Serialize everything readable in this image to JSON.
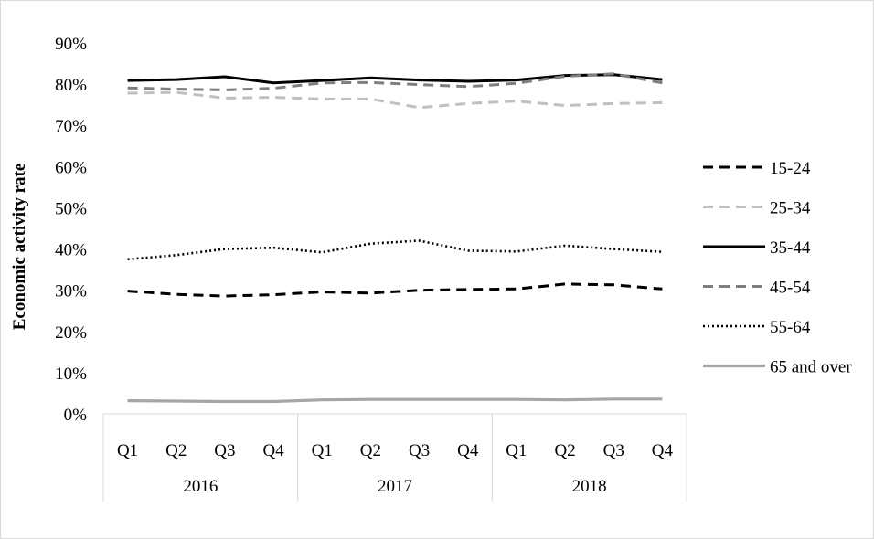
{
  "chart_data": {
    "type": "line",
    "title": "",
    "xlabel": "",
    "ylabel": "Economic activity rate",
    "ylim": [
      0,
      90
    ],
    "yticks": [
      0,
      10,
      20,
      30,
      40,
      50,
      60,
      70,
      80,
      90
    ],
    "ytick_labels": [
      "0%",
      "10%",
      "20%",
      "30%",
      "40%",
      "50%",
      "60%",
      "70%",
      "80%",
      "90%"
    ],
    "grid": false,
    "legend_position": "right",
    "categories": [
      "Q1",
      "Q2",
      "Q3",
      "Q4",
      "Q1",
      "Q2",
      "Q3",
      "Q4",
      "Q1",
      "Q2",
      "Q3",
      "Q4"
    ],
    "groups": [
      {
        "label": "2016",
        "count": 4
      },
      {
        "label": "2017",
        "count": 4
      },
      {
        "label": "2018",
        "count": 4
      }
    ],
    "series": [
      {
        "name": "15-24",
        "color": "#000000",
        "dash": "dashed",
        "values": [
          29.8,
          29.0,
          28.6,
          28.9,
          29.6,
          29.3,
          30.0,
          30.2,
          30.3,
          31.5,
          31.3,
          30.3
        ]
      },
      {
        "name": "25-34",
        "color": "#c0c0c0",
        "dash": "dashed",
        "values": [
          77.8,
          78.0,
          76.6,
          76.8,
          76.4,
          76.4,
          74.3,
          75.3,
          75.9,
          74.8,
          75.3,
          75.5
        ]
      },
      {
        "name": "35-44",
        "color": "#000000",
        "dash": "solid",
        "values": [
          80.9,
          81.1,
          81.8,
          80.3,
          80.9,
          81.5,
          81.0,
          80.7,
          81.0,
          82.1,
          82.3,
          81.1
        ]
      },
      {
        "name": "45-54",
        "color": "#7f7f7f",
        "dash": "dashed",
        "values": [
          79.1,
          78.8,
          78.6,
          79.0,
          80.3,
          80.4,
          79.9,
          79.4,
          80.2,
          81.9,
          82.5,
          80.3
        ]
      },
      {
        "name": "55-64",
        "color": "#000000",
        "dash": "dotted",
        "values": [
          37.5,
          38.5,
          40.0,
          40.3,
          39.2,
          41.3,
          42.0,
          39.6,
          39.4,
          40.8,
          40.0,
          39.3
        ]
      },
      {
        "name": "65 and over",
        "color": "#a6a6a6",
        "dash": "solid",
        "values": [
          3.2,
          3.1,
          3.0,
          3.0,
          3.4,
          3.5,
          3.5,
          3.5,
          3.5,
          3.4,
          3.6,
          3.6
        ]
      }
    ]
  }
}
